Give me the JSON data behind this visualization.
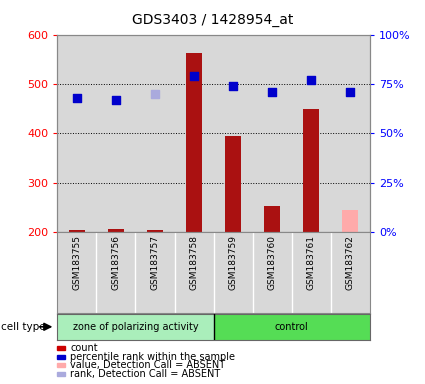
{
  "title": "GDS3403 / 1428954_at",
  "samples": [
    "GSM183755",
    "GSM183756",
    "GSM183757",
    "GSM183758",
    "GSM183759",
    "GSM183760",
    "GSM183761",
    "GSM183762"
  ],
  "n_zone": 4,
  "n_control": 4,
  "count_values": [
    205,
    207,
    205,
    563,
    395,
    253,
    450,
    null
  ],
  "count_absent_values": [
    null,
    null,
    null,
    null,
    null,
    null,
    null,
    245
  ],
  "percentile_values": [
    null,
    null,
    null,
    79,
    74,
    71,
    77,
    null
  ],
  "percentile_absent_dark": [
    68,
    67,
    null,
    null,
    null,
    null,
    null,
    71
  ],
  "percentile_absent_light": [
    null,
    null,
    70,
    null,
    null,
    null,
    null,
    null
  ],
  "ylim_left": [
    200,
    600
  ],
  "ylim_right": [
    0,
    100
  ],
  "yticks_left": [
    200,
    300,
    400,
    500,
    600
  ],
  "yticks_right": [
    0,
    25,
    50,
    75,
    100
  ],
  "ytick_labels_right": [
    "0%",
    "25%",
    "50%",
    "75%",
    "100%"
  ],
  "bar_color": "#aa1111",
  "bar_absent_color": "#ffaaaa",
  "dot_color": "#0000cc",
  "dot_absent_dark_color": "#0000cc",
  "dot_absent_light_color": "#aaaadd",
  "col_bg_color": "#d8d8d8",
  "zone_bg_color": "#aaeebb",
  "control_bg_color": "#55dd55",
  "legend_items": [
    {
      "color": "#cc0000",
      "label": "count"
    },
    {
      "color": "#0000cc",
      "label": "percentile rank within the sample"
    },
    {
      "color": "#ffaaaa",
      "label": "value, Detection Call = ABSENT"
    },
    {
      "color": "#aaaadd",
      "label": "rank, Detection Call = ABSENT"
    }
  ]
}
